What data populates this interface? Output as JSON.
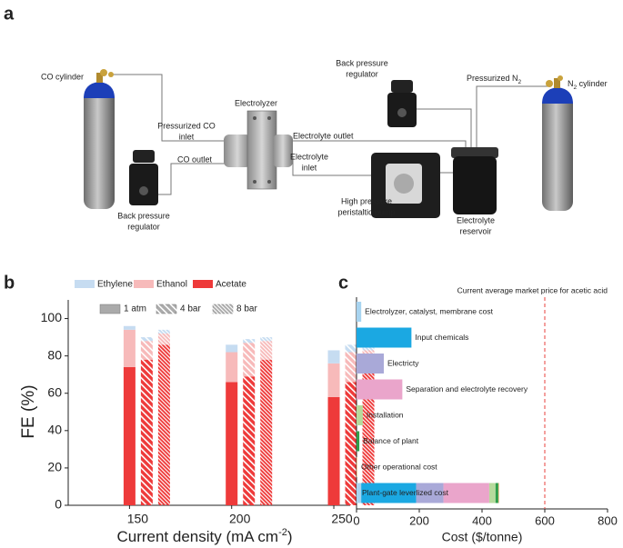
{
  "panels": [
    "a",
    "b",
    "c"
  ],
  "diagram": {
    "labels": [
      {
        "lines": [
          "CO cylinder"
        ]
      },
      {
        "lines": [
          "Electrolyzer"
        ]
      },
      {
        "lines": [
          "Pressurized CO",
          "inlet"
        ]
      },
      {
        "lines": [
          "CO outlet"
        ]
      },
      {
        "lines": [
          "Back pressure",
          "regulator"
        ]
      },
      {
        "lines": [
          "Electrolyte outlet"
        ]
      },
      {
        "lines": [
          "Electrolyte",
          "inlet"
        ]
      },
      {
        "lines": [
          "High pressure",
          "peristaltic pump"
        ]
      },
      {
        "lines": [
          "Electrolyte",
          "reservoir"
        ]
      },
      {
        "lines": [
          "Back pressure",
          "regulator"
        ]
      },
      {
        "lines": [
          "Pressurized N",
          "2"
        ]
      },
      {
        "lines": [
          "N",
          "2",
          " cylinder"
        ]
      }
    ]
  },
  "chart_data": [
    {
      "type": "grouped-stacked-bar",
      "ylabel": "FE (%)",
      "xlabel": [
        "Current density (mA cm",
        "-2",
        ")"
      ],
      "categories": [
        150,
        200,
        250
      ],
      "xlim": [
        120,
        258
      ],
      "ylim": [
        0,
        110
      ],
      "yticks": [
        0,
        20,
        40,
        60,
        80,
        100
      ],
      "pressures": [
        {
          "name": "1 atm",
          "hatch": "solid"
        },
        {
          "name": "4 bar",
          "hatch": "wide"
        },
        {
          "name": "8 bar",
          "hatch": "dense"
        }
      ],
      "series": [
        {
          "name": "Ethylene",
          "color": "#c6dcf1",
          "values": [
            [
              2,
              2,
              2
            ],
            [
              4,
              2,
              2
            ],
            [
              7,
              4,
              4
            ]
          ]
        },
        {
          "name": "Ethanol",
          "color": "#f7baba",
          "values": [
            [
              20,
              10,
              6
            ],
            [
              16,
              18,
              10
            ],
            [
              18,
              16,
              12
            ]
          ]
        },
        {
          "name": "Acetate",
          "color": "#ee3a3a",
          "values": [
            [
              74,
              78,
              86
            ],
            [
              66,
              69,
              78
            ],
            [
              58,
              66,
              71
            ]
          ]
        }
      ]
    },
    {
      "type": "horizontal-bar",
      "xlabel": "Cost ($/tonne)",
      "xlim": [
        0,
        800
      ],
      "xticks": [
        0,
        200,
        400,
        600,
        800
      ],
      "categories": [
        "Electrolyzer, catalyst, membrane cost",
        "Input chemicals",
        "Electricty",
        "Separation and electrolyte recovery",
        "Installation",
        "Balance of plant",
        "Other operational cost"
      ],
      "values": [
        15,
        175,
        87,
        146,
        20,
        9,
        3
      ],
      "colors": [
        "#a8d4f0",
        "#1ba8e2",
        "#a9a9d8",
        "#eaa5cb",
        "#b6da9c",
        "#2f9d49",
        "#f6c99c"
      ],
      "total_label": "Plant-gate leverlized cost",
      "annotation": {
        "value": 600,
        "label": "Current average market price for acetic acid",
        "color": "#e8413c"
      }
    }
  ]
}
